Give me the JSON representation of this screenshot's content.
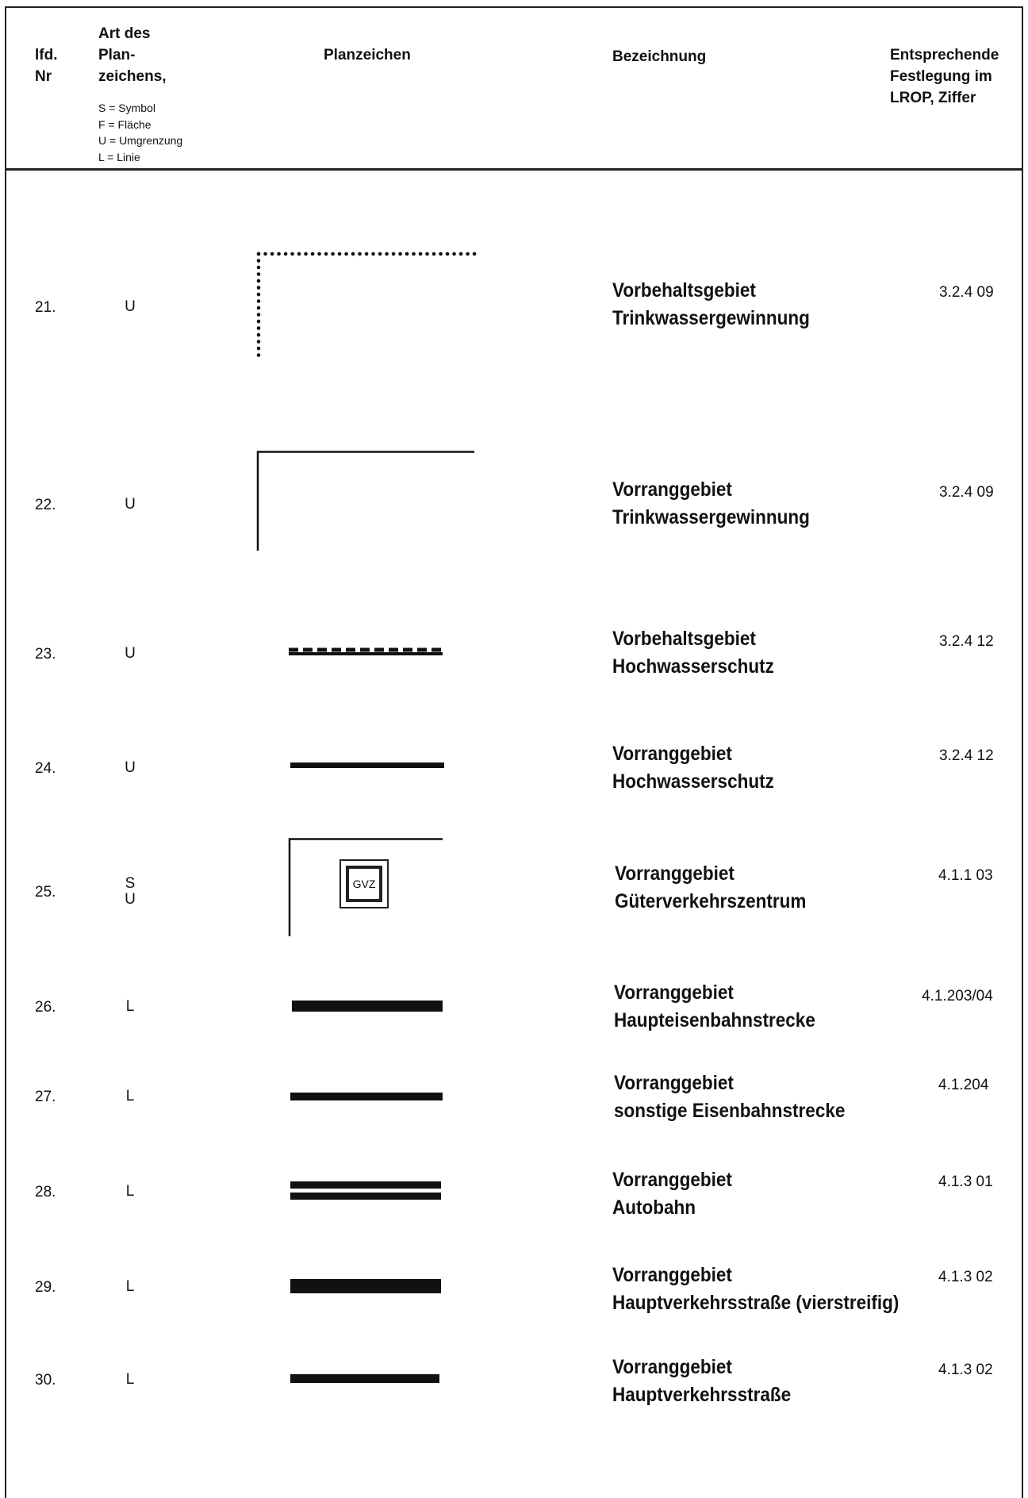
{
  "header": {
    "col1": [
      "lfd.",
      "Nr"
    ],
    "col2": [
      "Art des",
      "Plan-",
      "zeichens,"
    ],
    "legend": [
      "S = Symbol",
      "F = Fläche",
      "U = Umgrenzung",
      "L = Linie"
    ],
    "col3": "Planzeichen",
    "col4": "Bezeichnung",
    "col5": [
      "Entsprechende",
      "Festlegung im",
      "LROP, Ziffer"
    ]
  },
  "rows": [
    {
      "nr": "21.",
      "kind": [
        "U"
      ],
      "name": [
        "Vorbehaltsgebiet",
        "Trinkwassergewinnung"
      ],
      "ref": "3.2.4 09",
      "symbol": "dotted-corner"
    },
    {
      "nr": "22.",
      "kind": [
        "U"
      ],
      "name": [
        "Vorranggebiet",
        "Trinkwassergewinnung"
      ],
      "ref": "3.2.4 09",
      "symbol": "solid-corner"
    },
    {
      "nr": "23.",
      "kind": [
        "U"
      ],
      "name": [
        "Vorbehaltsgebiet",
        "Hochwasserschutz"
      ],
      "ref": "3.2.4 12",
      "symbol": "dashed-line"
    },
    {
      "nr": "24.",
      "kind": [
        "U"
      ],
      "name": [
        "Vorranggebiet",
        "Hochwasserschutz"
      ],
      "ref": "3.2.4 12",
      "symbol": "medium-line"
    },
    {
      "nr": "25.",
      "kind": [
        "S",
        "U"
      ],
      "name": [
        "Vorranggebiet",
        "Güterverkehrszentrum"
      ],
      "ref": "4.1.1 03",
      "symbol": "gvz-box",
      "symbol_text": "GVZ"
    },
    {
      "nr": "26.",
      "kind": [
        "L"
      ],
      "name": [
        "Vorranggebiet",
        "Haupteisenbahnstrecke"
      ],
      "ref": "4.1.203/04",
      "symbol": "thick-line"
    },
    {
      "nr": "27.",
      "kind": [
        "L"
      ],
      "name": [
        "Vorranggebiet",
        "sonstige Eisenbahnstrecke"
      ],
      "ref": "4.1.204",
      "symbol": "medium-line"
    },
    {
      "nr": "28.",
      "kind": [
        "L"
      ],
      "name": [
        "Vorranggebiet",
        "Autobahn"
      ],
      "ref": "4.1.3 01",
      "symbol": "double-line"
    },
    {
      "nr": "29.",
      "kind": [
        "L"
      ],
      "name": [
        "Vorranggebiet",
        "Hauptverkehrsstraße (vierstreifig)"
      ],
      "ref": "4.1.3 02",
      "symbol": "thickest-line"
    },
    {
      "nr": "30.",
      "kind": [
        "L"
      ],
      "name": [
        "Vorranggebiet",
        "Hauptverkehrsstraße"
      ],
      "ref": "4.1.3 02",
      "symbol": "medium-line"
    }
  ]
}
